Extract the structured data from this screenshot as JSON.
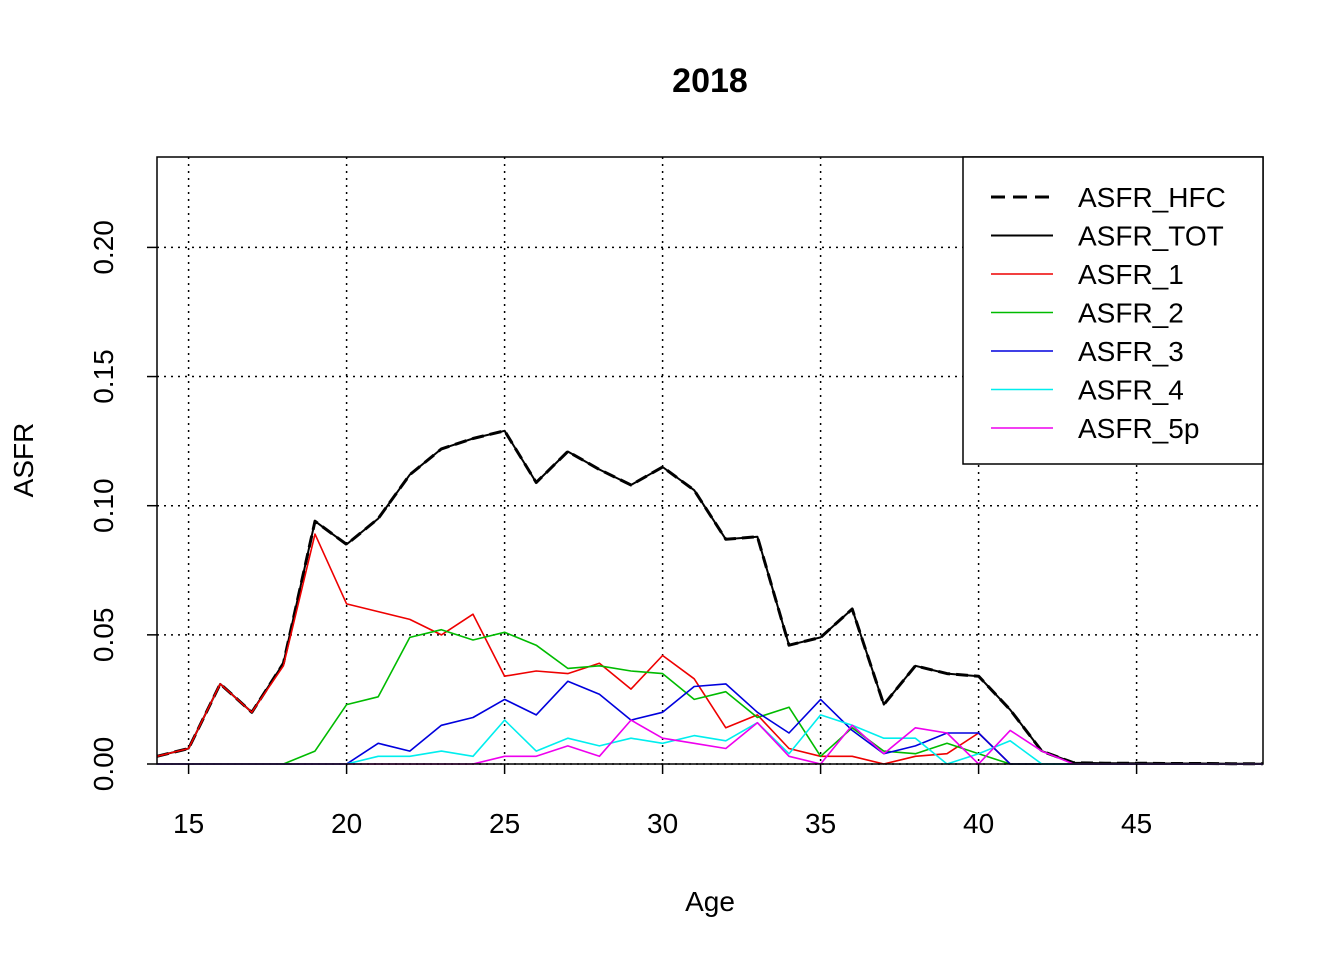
{
  "chart_data": {
    "type": "line",
    "title": "2018",
    "xlabel": "Age",
    "ylabel": "ASFR",
    "xlim": [
      14,
      49
    ],
    "ylim": [
      0,
      0.235
    ],
    "x_ticks": [
      15,
      20,
      25,
      30,
      35,
      40,
      45
    ],
    "y_ticks": [
      0,
      0.05,
      0.1,
      0.15,
      0.2
    ],
    "y_tick_labels": [
      "0.00",
      "0.05",
      "0.10",
      "0.15",
      "0.20"
    ],
    "grid": true,
    "legend_position": "top-right",
    "x": [
      14,
      15,
      16,
      17,
      18,
      19,
      20,
      21,
      22,
      23,
      24,
      25,
      26,
      27,
      28,
      29,
      30,
      31,
      32,
      33,
      34,
      35,
      36,
      37,
      38,
      39,
      40,
      41,
      42,
      43,
      44,
      45,
      46,
      47,
      48,
      49
    ],
    "series": [
      {
        "name": "ASFR_HFC",
        "color": "#000000",
        "dash": "dashed",
        "width": 3,
        "values": [
          0.003,
          0.006,
          0.031,
          0.02,
          0.039,
          0.094,
          0.085,
          0.095,
          0.112,
          0.122,
          0.126,
          0.129,
          0.109,
          0.121,
          0.114,
          0.108,
          0.115,
          0.106,
          0.087,
          0.088,
          0.046,
          0.049,
          0.06,
          0.023,
          0.038,
          0.035,
          0.034,
          0.021,
          0.005,
          0.0005,
          0.0003,
          0.0003,
          0.0002,
          0.0002,
          0.0001,
          0.0001
        ]
      },
      {
        "name": "ASFR_TOT",
        "color": "#000000",
        "dash": "solid",
        "width": 2,
        "values": [
          0.003,
          0.006,
          0.031,
          0.02,
          0.039,
          0.094,
          0.085,
          0.095,
          0.112,
          0.122,
          0.126,
          0.129,
          0.109,
          0.121,
          0.114,
          0.108,
          0.115,
          0.106,
          0.087,
          0.088,
          0.046,
          0.049,
          0.06,
          0.023,
          0.038,
          0.035,
          0.034,
          0.021,
          0.005,
          0.0005,
          0.0003,
          0.0003,
          0.0002,
          0.0002,
          0.0001,
          0.0001
        ]
      },
      {
        "name": "ASFR_1",
        "color": "#ee0000",
        "dash": "solid",
        "width": 1.6,
        "values": [
          0.003,
          0.006,
          0.031,
          0.02,
          0.038,
          0.089,
          0.062,
          0.059,
          0.056,
          0.05,
          0.058,
          0.034,
          0.036,
          0.035,
          0.039,
          0.029,
          0.042,
          0.033,
          0.014,
          0.019,
          0.006,
          0.003,
          0.003,
          0,
          0.003,
          0.004,
          0.012,
          0,
          0,
          0,
          0,
          0,
          0,
          0,
          0,
          0
        ]
      },
      {
        "name": "ASFR_2",
        "color": "#00bb00",
        "dash": "solid",
        "width": 1.6,
        "values": [
          0,
          0,
          0,
          0,
          0,
          0.005,
          0.023,
          0.026,
          0.049,
          0.052,
          0.048,
          0.051,
          0.046,
          0.037,
          0.038,
          0.036,
          0.035,
          0.025,
          0.028,
          0.018,
          0.022,
          0.003,
          0.014,
          0.005,
          0.004,
          0.008,
          0.004,
          0,
          0,
          0,
          0,
          0,
          0,
          0,
          0,
          0
        ]
      },
      {
        "name": "ASFR_3",
        "color": "#0000dd",
        "dash": "solid",
        "width": 1.6,
        "values": [
          0,
          0,
          0,
          0,
          0,
          0,
          0,
          0.008,
          0.005,
          0.015,
          0.018,
          0.025,
          0.019,
          0.032,
          0.027,
          0.017,
          0.02,
          0.03,
          0.031,
          0.02,
          0.012,
          0.025,
          0.013,
          0.004,
          0.007,
          0.012,
          0.012,
          0,
          0,
          0,
          0,
          0,
          0,
          0,
          0,
          0
        ]
      },
      {
        "name": "ASFR_4",
        "color": "#00eeee",
        "dash": "solid",
        "width": 1.6,
        "values": [
          0,
          0,
          0,
          0,
          0,
          0,
          0,
          0.003,
          0.003,
          0.005,
          0.003,
          0.017,
          0.005,
          0.01,
          0.007,
          0.01,
          0.008,
          0.011,
          0.009,
          0.016,
          0.004,
          0.019,
          0.015,
          0.01,
          0.01,
          0,
          0.004,
          0.009,
          0,
          0,
          0,
          0,
          0,
          0,
          0,
          0
        ]
      },
      {
        "name": "ASFR_5p",
        "color": "#ee00ee",
        "dash": "solid",
        "width": 1.6,
        "values": [
          0,
          0,
          0,
          0,
          0,
          0,
          0,
          0,
          0,
          0,
          0,
          0.003,
          0.003,
          0.007,
          0.003,
          0.017,
          0.01,
          0.008,
          0.006,
          0.016,
          0.003,
          0,
          0.015,
          0.004,
          0.014,
          0.012,
          0,
          0.013,
          0.005,
          0,
          0,
          0,
          0,
          0,
          0,
          0
        ]
      }
    ]
  }
}
